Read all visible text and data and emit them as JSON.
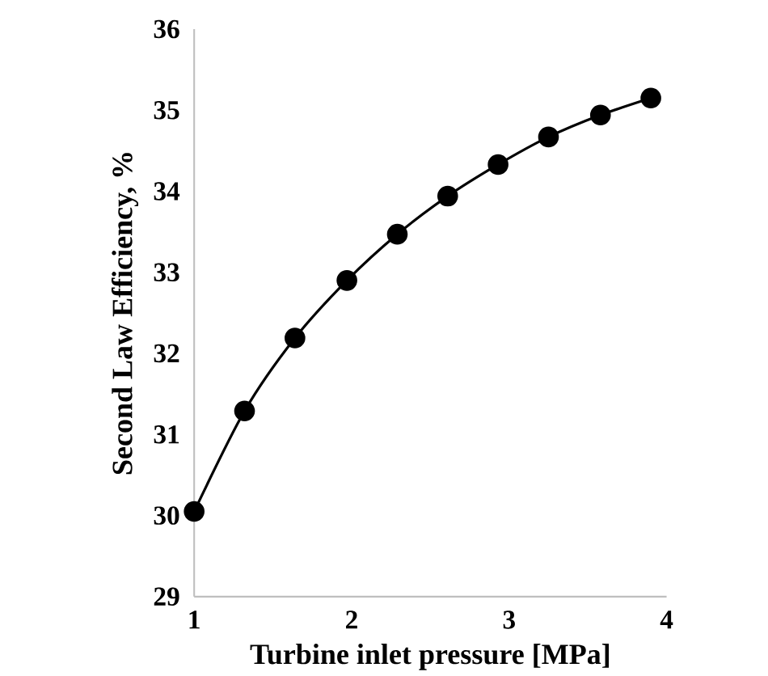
{
  "chart_data": {
    "type": "line",
    "xlabel": "Turbine inlet pressure [MPa]",
    "ylabel": "Second Law Efficiency, %",
    "x": [
      1,
      1.32,
      1.64,
      1.97,
      2.29,
      2.61,
      2.93,
      3.25,
      3.58,
      3.9
    ],
    "series": [
      {
        "color": "#000000",
        "values": [
          30.05,
          31.29,
          32.19,
          32.9,
          33.47,
          33.94,
          34.33,
          34.67,
          34.94,
          35.15
        ]
      }
    ],
    "xlim": [
      1,
      4
    ],
    "ylim": [
      29,
      36
    ],
    "xticks": [
      1,
      2,
      3,
      4
    ],
    "yticks": [
      29,
      30,
      31,
      32,
      33,
      34,
      35,
      36
    ],
    "marker": "circle",
    "line_style": "solid"
  }
}
